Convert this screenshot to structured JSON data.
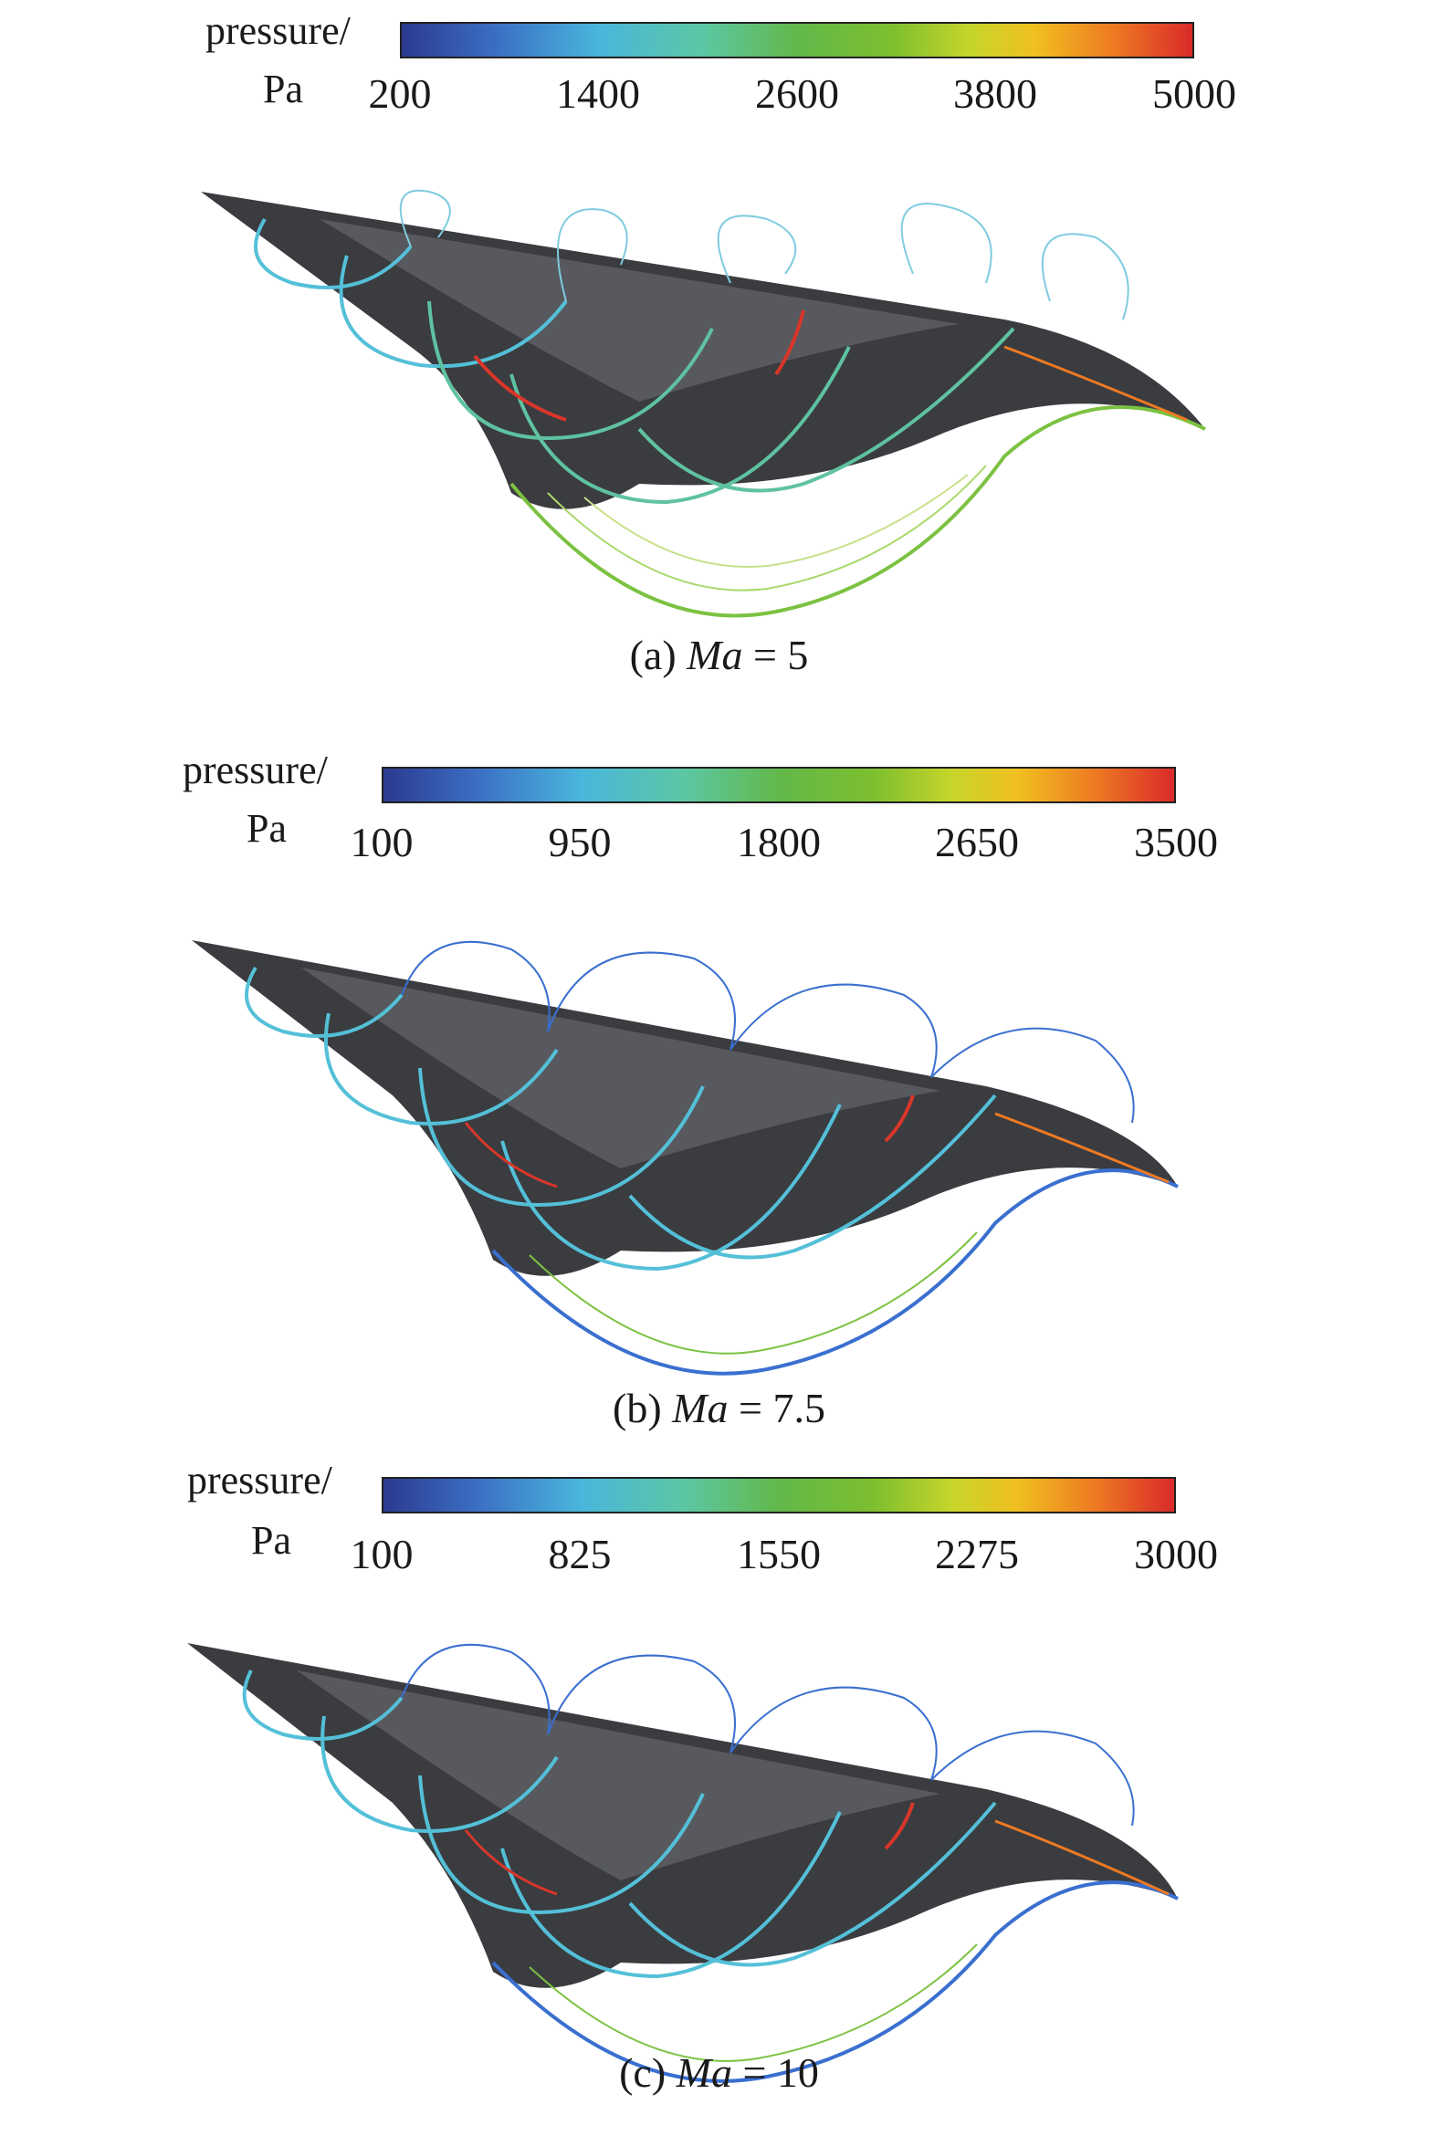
{
  "panels": [
    {
      "unit_top": "pressure/",
      "unit_bottom": "Pa",
      "ticks": [
        "200",
        "1400",
        "2600",
        "3800",
        "5000"
      ],
      "caption_prefix": "(a) ",
      "caption_var": "Ma",
      "caption_suffix": " = 5"
    },
    {
      "unit_top": "pressure/",
      "unit_bottom": "Pa",
      "ticks": [
        "100",
        "950",
        "1800",
        "2650",
        "3500"
      ],
      "caption_prefix": "(b) ",
      "caption_var": "Ma",
      "caption_suffix": " = 7.5"
    },
    {
      "unit_top": "pressure/",
      "unit_bottom": "Pa",
      "ticks": [
        "100",
        "825",
        "1550",
        "2275",
        "3000"
      ],
      "caption_prefix": "(c) ",
      "caption_var": "Ma",
      "caption_suffix": " = 10"
    }
  ],
  "colors": {
    "body": "#3a3c40",
    "contour_green": "#7cc242",
    "contour_red": "#d9362a",
    "contour_cyan": "#54c0d8",
    "contour_blue": "#3a6fcf"
  }
}
